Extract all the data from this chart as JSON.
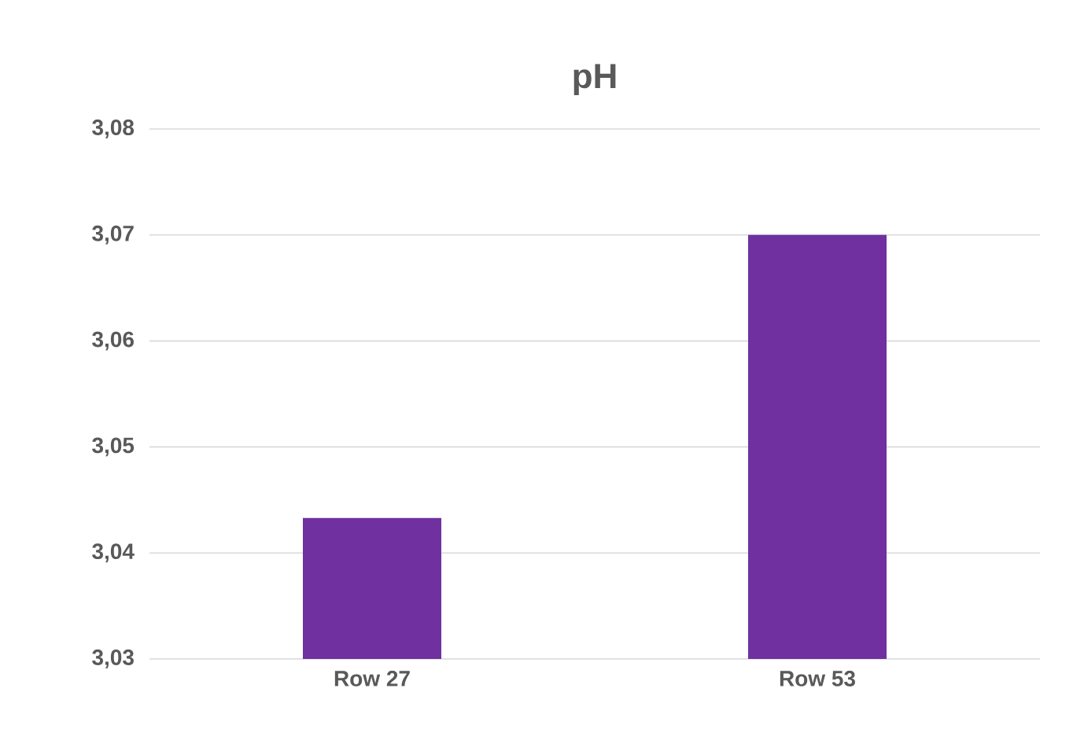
{
  "chart_data": {
    "type": "bar",
    "title": "pH",
    "categories": [
      "Row 27",
      "Row 53"
    ],
    "values": [
      3.0433,
      3.07
    ],
    "color": "#7030a0",
    "ylim": [
      3.03,
      3.08
    ],
    "yticks": [
      {
        "value": 3.03,
        "label": "3,03"
      },
      {
        "value": 3.04,
        "label": "3,04"
      },
      {
        "value": 3.05,
        "label": "3,05"
      },
      {
        "value": 3.06,
        "label": "3,06"
      },
      {
        "value": 3.07,
        "label": "3,07"
      },
      {
        "value": 3.08,
        "label": "3,08"
      }
    ],
    "grid": "y"
  }
}
